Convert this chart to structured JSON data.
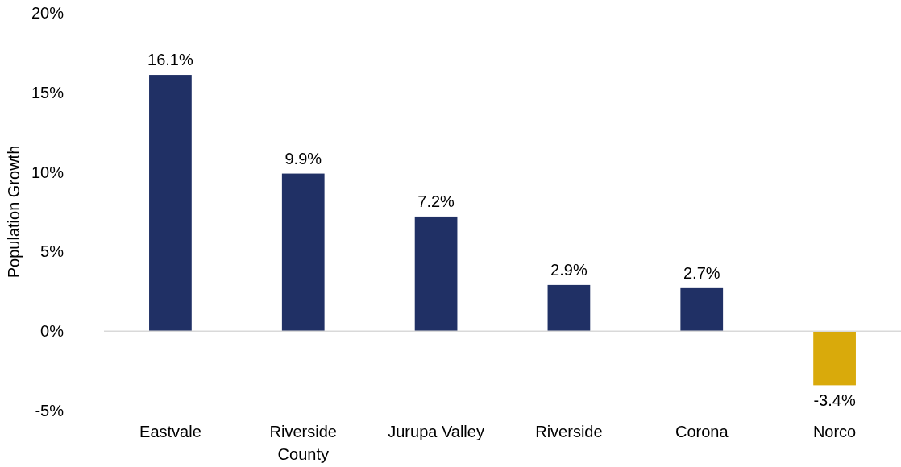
{
  "chart_data": {
    "type": "bar",
    "ylabel": "Population Growth",
    "categories": [
      "Eastvale",
      "Riverside County",
      "Jurupa Valley",
      "Riverside",
      "Corona",
      "Norco"
    ],
    "values": [
      16.1,
      9.9,
      7.2,
      2.9,
      2.7,
      -3.4
    ],
    "colors": [
      "#203065",
      "#203065",
      "#203065",
      "#203065",
      "#203065",
      "#d9aa0b"
    ],
    "value_labels": [
      "16.1%",
      "9.9%",
      "7.2%",
      "2.9%",
      "2.7%",
      "-3.4%"
    ],
    "ylim": [
      -5,
      20
    ],
    "yticks": [
      {
        "value": -5,
        "label": "-5%"
      },
      {
        "value": 0,
        "label": "0%"
      },
      {
        "value": 5,
        "label": "5%"
      },
      {
        "value": 10,
        "label": "10%"
      },
      {
        "value": 15,
        "label": "15%"
      },
      {
        "value": 20,
        "label": "20%"
      }
    ]
  }
}
